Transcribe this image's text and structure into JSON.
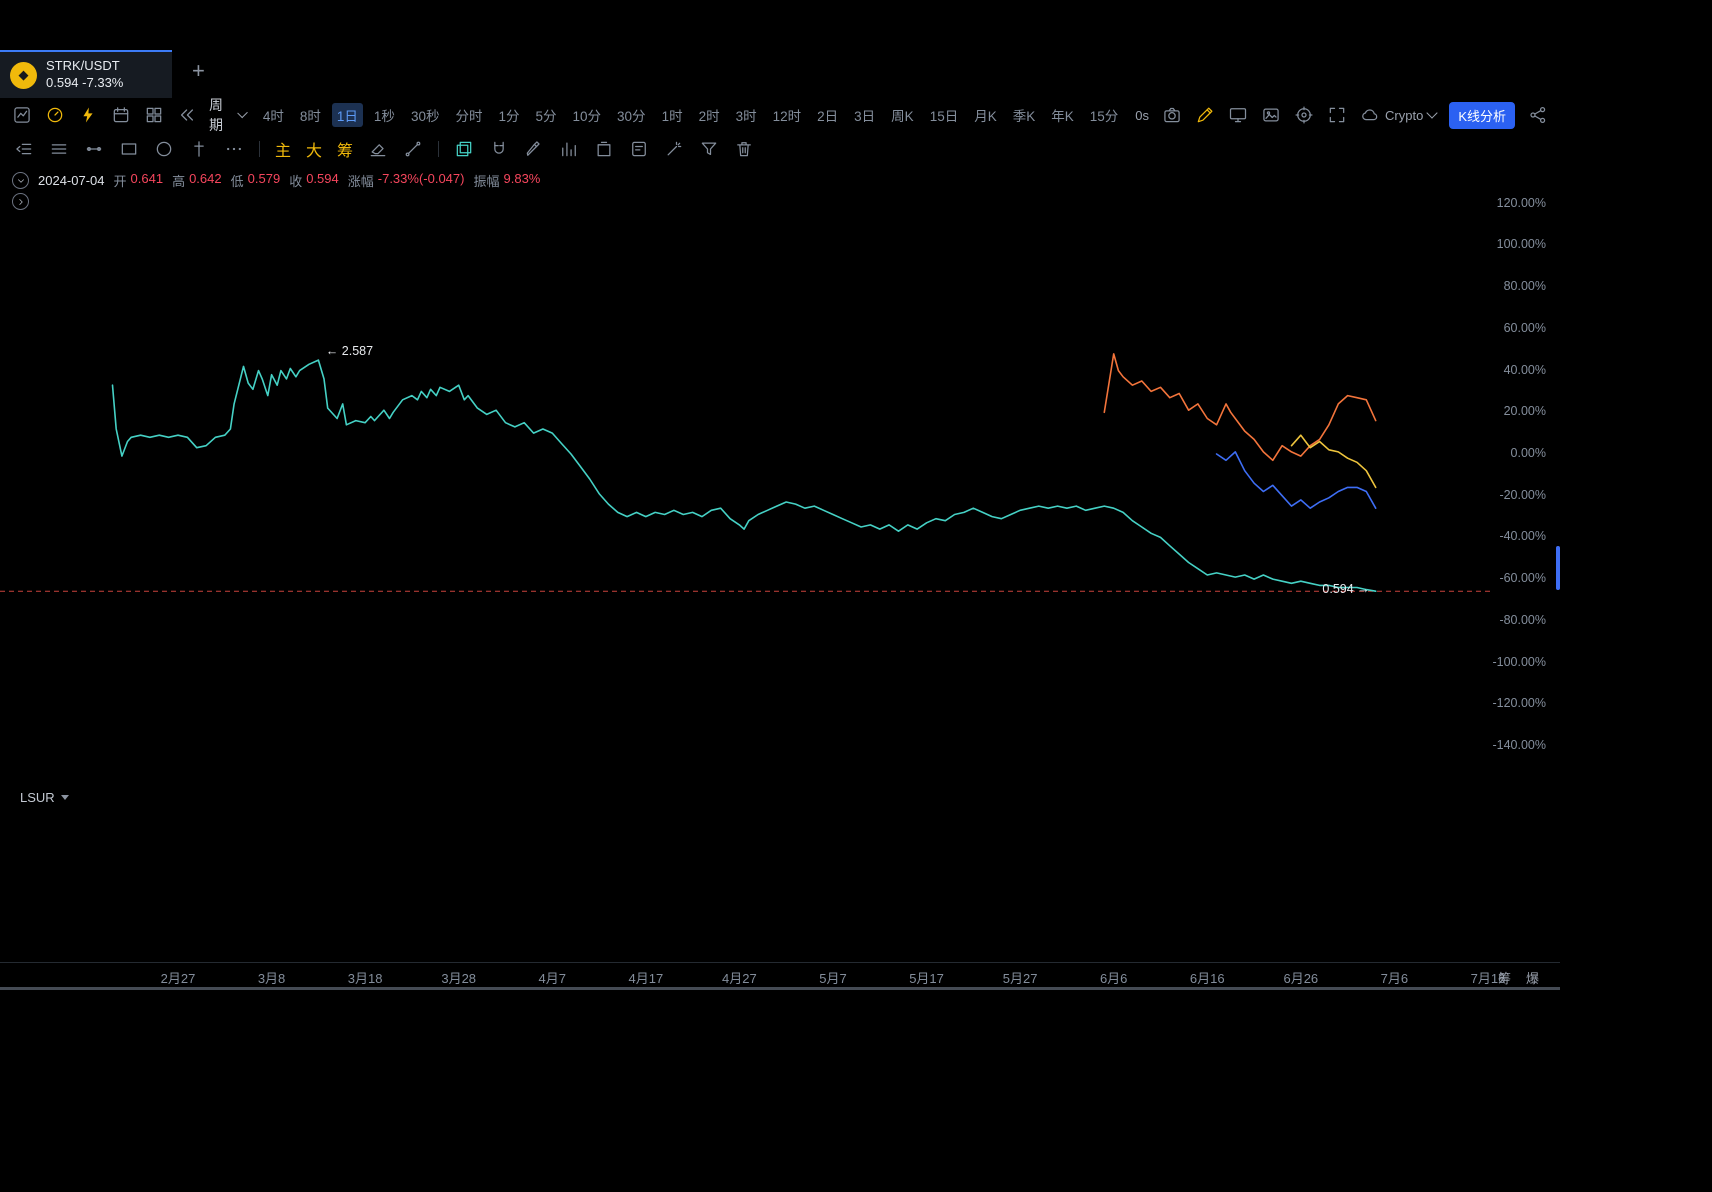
{
  "tab": {
    "symbol": "STRK/USDT",
    "price": "0.594",
    "change": "-7.33%",
    "coin_icon": "binance-coin-icon",
    "coin_glyph": "◆",
    "new_tab_label": "+"
  },
  "toolbar1": {
    "left_icons": [
      "kline-chart-icon",
      "gauge-icon",
      "flash-icon",
      "calendar-icon",
      "grid-icon",
      "rewind-icon"
    ],
    "period_label": "周期",
    "timeframes": [
      "4时",
      "8时",
      "1日",
      "1秒",
      "30秒",
      "分时",
      "1分",
      "5分",
      "10分",
      "30分",
      "1时",
      "2时",
      "3时",
      "12时",
      "2日",
      "3日",
      "周K",
      "15日",
      "月K",
      "季K",
      "年K",
      "15分"
    ],
    "selected_timeframe": "1日",
    "countdown": "0s",
    "right_icons": [
      "camera-icon",
      "draw-icon",
      "monitor-icon",
      "screenshot-icon",
      "crosshair-icon",
      "fullscreen-icon"
    ],
    "crypto_label": "Crypto",
    "kline_analysis_label": "K线分析",
    "share_icon": "share-icon"
  },
  "toolbar2": {
    "icons": [
      "panel-toggle-icon",
      "menu-icon",
      "hline-tool-icon",
      "rect-tool-icon",
      "circle-tool-icon",
      "dagger-tool-icon",
      "more-tools-icon",
      "eraser-icon",
      "trendline-icon",
      "copy-icon",
      "magnet-icon",
      "pen-icon",
      "histogram-icon",
      "clear-box-icon",
      "note-icon",
      "gesture-icon",
      "funnel-icon",
      "trash-icon"
    ],
    "main_label": "主",
    "large_label": "大",
    "chips_label": "筹"
  },
  "info": {
    "date": "2024-07-04",
    "open_label": "开",
    "open": "0.641",
    "high_label": "高",
    "high": "0.642",
    "low_label": "低",
    "low": "0.579",
    "close_label": "收",
    "close": "0.594",
    "change_label": "涨幅",
    "change": "-7.33%(-0.047)",
    "amplitude_label": "振幅",
    "amplitude": "9.83%"
  },
  "sub_panel": {
    "indicator_label": "LSUR"
  },
  "bottom_row": {
    "chips_label": "筹",
    "liquidation_label": "爆"
  },
  "colors": {
    "accent_blue": "#3c7bf6",
    "down_red": "#f6465d",
    "brand_yellow": "#f0b90b",
    "teal_line": "#45d1c5",
    "orange_line": "#f3743b",
    "blue_line": "#3e6ef5",
    "yellow_line": "#eec43d",
    "baseline_red": "#c9423c",
    "text_gray": "#848e9c",
    "text_white": "#eaecef"
  },
  "chart_data": {
    "type": "line",
    "symbol": "STRK/USDT",
    "interval": "1日",
    "grid": false,
    "ylabel": "涨跌幅 (%)",
    "ylim": [
      -150,
      130
    ],
    "x_unit": "days since 2024-02-27",
    "plot": {
      "x0": 178,
      "x_per_day": 9.357,
      "y0": 288,
      "y_per_pct": 2.0857,
      "x_max": 1490
    },
    "y_ticks": [
      {
        "value": 120,
        "label": "120.00%"
      },
      {
        "value": 100,
        "label": "100.00%"
      },
      {
        "value": 80,
        "label": "80.00%"
      },
      {
        "value": 60,
        "label": "60.00%"
      },
      {
        "value": 40,
        "label": "40.00%"
      },
      {
        "value": 20,
        "label": "20.00%"
      },
      {
        "value": 0,
        "label": "0.00%"
      },
      {
        "value": -20,
        "label": "-20.00%"
      },
      {
        "value": -40,
        "label": "-40.00%"
      },
      {
        "value": -60,
        "label": "-60.00%"
      },
      {
        "value": -80,
        "label": "-80.00%"
      },
      {
        "value": -100,
        "label": "-100.00%"
      },
      {
        "value": -120,
        "label": "-120.00%"
      },
      {
        "value": -140,
        "label": "-140.00%"
      }
    ],
    "x_ticks": [
      {
        "day": 0,
        "label": "2月27"
      },
      {
        "day": 10,
        "label": "3月8"
      },
      {
        "day": 20,
        "label": "3月18"
      },
      {
        "day": 30,
        "label": "3月28"
      },
      {
        "day": 40,
        "label": "4月7"
      },
      {
        "day": 50,
        "label": "4月17"
      },
      {
        "day": 60,
        "label": "4月27"
      },
      {
        "day": 70,
        "label": "5月7"
      },
      {
        "day": 80,
        "label": "5月17"
      },
      {
        "day": 90,
        "label": "5月27"
      },
      {
        "day": 100,
        "label": "6月6"
      },
      {
        "day": 110,
        "label": "6月16"
      },
      {
        "day": 120,
        "label": "6月26"
      },
      {
        "day": 130,
        "label": "7月6"
      },
      {
        "day": 140,
        "label": "7月16"
      }
    ],
    "baseline": {
      "pct": -65.8,
      "label": "0.594",
      "color": "#c9423c",
      "style": "dashed"
    },
    "annotations": [
      {
        "text": "← 2.587",
        "day": 15.8,
        "pct": 47.5
      },
      {
        "text": "0.594 →",
        "day": 122.3,
        "pct": -66.6
      }
    ],
    "series": [
      {
        "name": "STRK/USDT",
        "color": "#45d1c5",
        "points": [
          [
            -7,
            33
          ],
          [
            -6.6,
            12
          ],
          [
            -6,
            -1
          ],
          [
            -5.4,
            6
          ],
          [
            -5,
            8
          ],
          [
            -4,
            9
          ],
          [
            -3,
            8
          ],
          [
            -2,
            9
          ],
          [
            -1,
            8
          ],
          [
            0,
            9
          ],
          [
            1,
            8
          ],
          [
            2,
            3
          ],
          [
            3,
            4
          ],
          [
            4,
            8
          ],
          [
            5,
            9
          ],
          [
            5.6,
            12
          ],
          [
            6,
            24
          ],
          [
            7,
            42
          ],
          [
            7.5,
            34
          ],
          [
            8,
            31
          ],
          [
            8.6,
            40
          ],
          [
            9,
            36
          ],
          [
            9.6,
            28
          ],
          [
            10,
            38
          ],
          [
            10.6,
            33
          ],
          [
            11,
            40
          ],
          [
            11.6,
            36
          ],
          [
            12,
            41
          ],
          [
            12.6,
            37
          ],
          [
            13,
            40
          ],
          [
            14,
            43
          ],
          [
            15,
            45
          ],
          [
            15.6,
            36
          ],
          [
            16,
            22
          ],
          [
            17,
            17
          ],
          [
            17.6,
            24
          ],
          [
            18,
            14
          ],
          [
            19,
            16
          ],
          [
            20,
            15
          ],
          [
            20.6,
            18
          ],
          [
            21,
            16
          ],
          [
            22,
            21
          ],
          [
            22.6,
            17
          ],
          [
            23,
            20
          ],
          [
            24,
            26
          ],
          [
            25,
            28
          ],
          [
            25.6,
            26
          ],
          [
            26,
            30
          ],
          [
            26.6,
            27
          ],
          [
            27,
            31
          ],
          [
            27.6,
            28
          ],
          [
            28,
            32
          ],
          [
            29,
            30
          ],
          [
            30,
            33
          ],
          [
            30.6,
            26
          ],
          [
            31,
            28
          ],
          [
            32,
            22
          ],
          [
            33,
            19
          ],
          [
            34,
            21
          ],
          [
            35,
            15
          ],
          [
            36,
            13
          ],
          [
            37,
            15
          ],
          [
            38,
            10
          ],
          [
            39,
            12
          ],
          [
            40,
            10
          ],
          [
            41,
            5
          ],
          [
            42,
            0
          ],
          [
            43,
            -6
          ],
          [
            44,
            -12
          ],
          [
            45,
            -19
          ],
          [
            46,
            -24
          ],
          [
            47,
            -28
          ],
          [
            48,
            -30
          ],
          [
            49,
            -28
          ],
          [
            50,
            -30
          ],
          [
            51,
            -28
          ],
          [
            52,
            -29
          ],
          [
            53,
            -27
          ],
          [
            54,
            -29
          ],
          [
            55,
            -28
          ],
          [
            56,
            -30
          ],
          [
            57,
            -27
          ],
          [
            58,
            -26
          ],
          [
            59,
            -31
          ],
          [
            60,
            -34
          ],
          [
            60.5,
            -36
          ],
          [
            61,
            -32
          ],
          [
            62,
            -29
          ],
          [
            63,
            -27
          ],
          [
            64,
            -25
          ],
          [
            65,
            -23
          ],
          [
            66,
            -24
          ],
          [
            67,
            -26
          ],
          [
            68,
            -25
          ],
          [
            69,
            -27
          ],
          [
            70,
            -29
          ],
          [
            71,
            -31
          ],
          [
            72,
            -33
          ],
          [
            73,
            -35
          ],
          [
            74,
            -34
          ],
          [
            75,
            -36
          ],
          [
            76,
            -34
          ],
          [
            77,
            -37
          ],
          [
            78,
            -34
          ],
          [
            79,
            -36
          ],
          [
            80,
            -33
          ],
          [
            81,
            -31
          ],
          [
            82,
            -32
          ],
          [
            83,
            -29
          ],
          [
            84,
            -28
          ],
          [
            85,
            -26
          ],
          [
            86,
            -28
          ],
          [
            87,
            -30
          ],
          [
            88,
            -31
          ],
          [
            89,
            -29
          ],
          [
            90,
            -27
          ],
          [
            91,
            -26
          ],
          [
            92,
            -25
          ],
          [
            93,
            -26
          ],
          [
            94,
            -25
          ],
          [
            95,
            -26
          ],
          [
            96,
            -25
          ],
          [
            97,
            -27
          ],
          [
            98,
            -26
          ],
          [
            99,
            -25
          ],
          [
            100,
            -26
          ],
          [
            101,
            -28
          ],
          [
            102,
            -32
          ],
          [
            103,
            -35
          ],
          [
            104,
            -38
          ],
          [
            105,
            -40
          ],
          [
            106,
            -44
          ],
          [
            107,
            -48
          ],
          [
            108,
            -52
          ],
          [
            109,
            -55
          ],
          [
            110,
            -58
          ],
          [
            111,
            -57
          ],
          [
            112,
            -58
          ],
          [
            113,
            -59
          ],
          [
            114,
            -58
          ],
          [
            115,
            -60
          ],
          [
            116,
            -58
          ],
          [
            117,
            -60
          ],
          [
            118,
            -61
          ],
          [
            119,
            -62
          ],
          [
            120,
            -61
          ],
          [
            121,
            -62
          ],
          [
            122,
            -63
          ],
          [
            123,
            -63
          ],
          [
            124,
            -64
          ],
          [
            125,
            -64
          ],
          [
            126,
            -64
          ],
          [
            127,
            -65
          ],
          [
            128,
            -65.8
          ]
        ]
      },
      {
        "name": "compare-orange",
        "color": "#f3743b",
        "points": [
          [
            99,
            20
          ],
          [
            100,
            48
          ],
          [
            100.5,
            40
          ],
          [
            101,
            37
          ],
          [
            102,
            33
          ],
          [
            103,
            35
          ],
          [
            104,
            30
          ],
          [
            105,
            32
          ],
          [
            106,
            27
          ],
          [
            107,
            29
          ],
          [
            108,
            21
          ],
          [
            109,
            24
          ],
          [
            110,
            17
          ],
          [
            111,
            14
          ],
          [
            112,
            24
          ],
          [
            112.5,
            20
          ],
          [
            113,
            17
          ],
          [
            114,
            11
          ],
          [
            115,
            7
          ],
          [
            116,
            1
          ],
          [
            117,
            -3
          ],
          [
            118,
            4
          ],
          [
            119,
            1
          ],
          [
            120,
            -1
          ],
          [
            121,
            4
          ],
          [
            122,
            7
          ],
          [
            123,
            14
          ],
          [
            124,
            24
          ],
          [
            125,
            28
          ],
          [
            126,
            27
          ],
          [
            127,
            26
          ],
          [
            128,
            16
          ]
        ]
      },
      {
        "name": "compare-blue",
        "color": "#3e6ef5",
        "points": [
          [
            111,
            0
          ],
          [
            112,
            -3
          ],
          [
            113,
            1
          ],
          [
            114,
            -8
          ],
          [
            115,
            -14
          ],
          [
            116,
            -18
          ],
          [
            117,
            -15
          ],
          [
            118,
            -20
          ],
          [
            119,
            -25
          ],
          [
            120,
            -22
          ],
          [
            121,
            -26
          ],
          [
            122,
            -23
          ],
          [
            123,
            -21
          ],
          [
            124,
            -18
          ],
          [
            125,
            -16
          ],
          [
            126,
            -16
          ],
          [
            127,
            -18
          ],
          [
            128,
            -26
          ]
        ]
      },
      {
        "name": "compare-yellow",
        "color": "#eec43d",
        "points": [
          [
            119,
            4
          ],
          [
            120,
            9
          ],
          [
            120.5,
            6
          ],
          [
            121,
            3
          ],
          [
            122,
            6
          ],
          [
            123,
            2
          ],
          [
            124,
            1
          ],
          [
            125,
            -2
          ],
          [
            126,
            -4
          ],
          [
            127,
            -8
          ],
          [
            128,
            -16
          ]
        ]
      }
    ]
  }
}
